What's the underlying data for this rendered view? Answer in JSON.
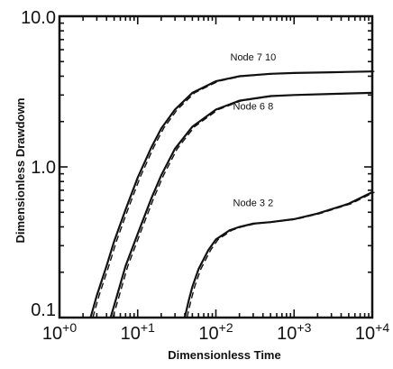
{
  "chart_data": {
    "type": "line",
    "title": "",
    "xlabel": "Dimensionless Time",
    "ylabel": "Dimensionless Drawdown",
    "xscale": "log",
    "yscale": "log",
    "xlim": [
      1,
      10000
    ],
    "ylim": [
      0.1,
      10
    ],
    "grid": false,
    "x_ticks": [
      {
        "value": 1,
        "label": "10+0"
      },
      {
        "value": 10,
        "label": "10+1"
      },
      {
        "value": 100,
        "label": "10+2"
      },
      {
        "value": 1000,
        "label": "10+3"
      },
      {
        "value": 10000,
        "label": "10+4"
      }
    ],
    "y_ticks": [
      {
        "value": 0.1,
        "label": "0.1"
      },
      {
        "value": 1,
        "label": "1.0"
      },
      {
        "value": 10,
        "label": "10.0"
      }
    ],
    "series": [
      {
        "name": "Node 7 10",
        "style": "solid with dashed overlay",
        "x": [
          2.5,
          3,
          4,
          5,
          7,
          10,
          15,
          20,
          30,
          50,
          100,
          200,
          500,
          1000,
          3000,
          10000
        ],
        "y": [
          0.1,
          0.14,
          0.22,
          0.32,
          0.52,
          0.85,
          1.35,
          1.8,
          2.4,
          3.1,
          3.7,
          4.0,
          4.15,
          4.2,
          4.25,
          4.3
        ]
      },
      {
        "name": "Node 6 8",
        "style": "solid with dashed overlay",
        "x": [
          4.5,
          5,
          7,
          10,
          15,
          20,
          30,
          50,
          100,
          200,
          500,
          1000,
          3000,
          10000
        ],
        "y": [
          0.1,
          0.12,
          0.22,
          0.36,
          0.62,
          0.88,
          1.32,
          1.85,
          2.4,
          2.75,
          2.95,
          3.0,
          3.05,
          3.1
        ]
      },
      {
        "name": "Node 3 2",
        "style": "solid with dashed overlay",
        "x": [
          40,
          45,
          50,
          60,
          80,
          100,
          150,
          200,
          300,
          500,
          1000,
          2000,
          5000,
          10000
        ],
        "y": [
          0.1,
          0.13,
          0.16,
          0.21,
          0.28,
          0.33,
          0.38,
          0.4,
          0.42,
          0.43,
          0.45,
          0.49,
          0.57,
          0.68
        ]
      }
    ],
    "annotations": [
      {
        "text": "Node 7 10",
        "x": 300,
        "y": 5.1
      },
      {
        "text": "Node 6 8",
        "x": 300,
        "y": 2.4
      },
      {
        "text": "Node 3 2",
        "x": 300,
        "y": 0.55
      }
    ]
  }
}
